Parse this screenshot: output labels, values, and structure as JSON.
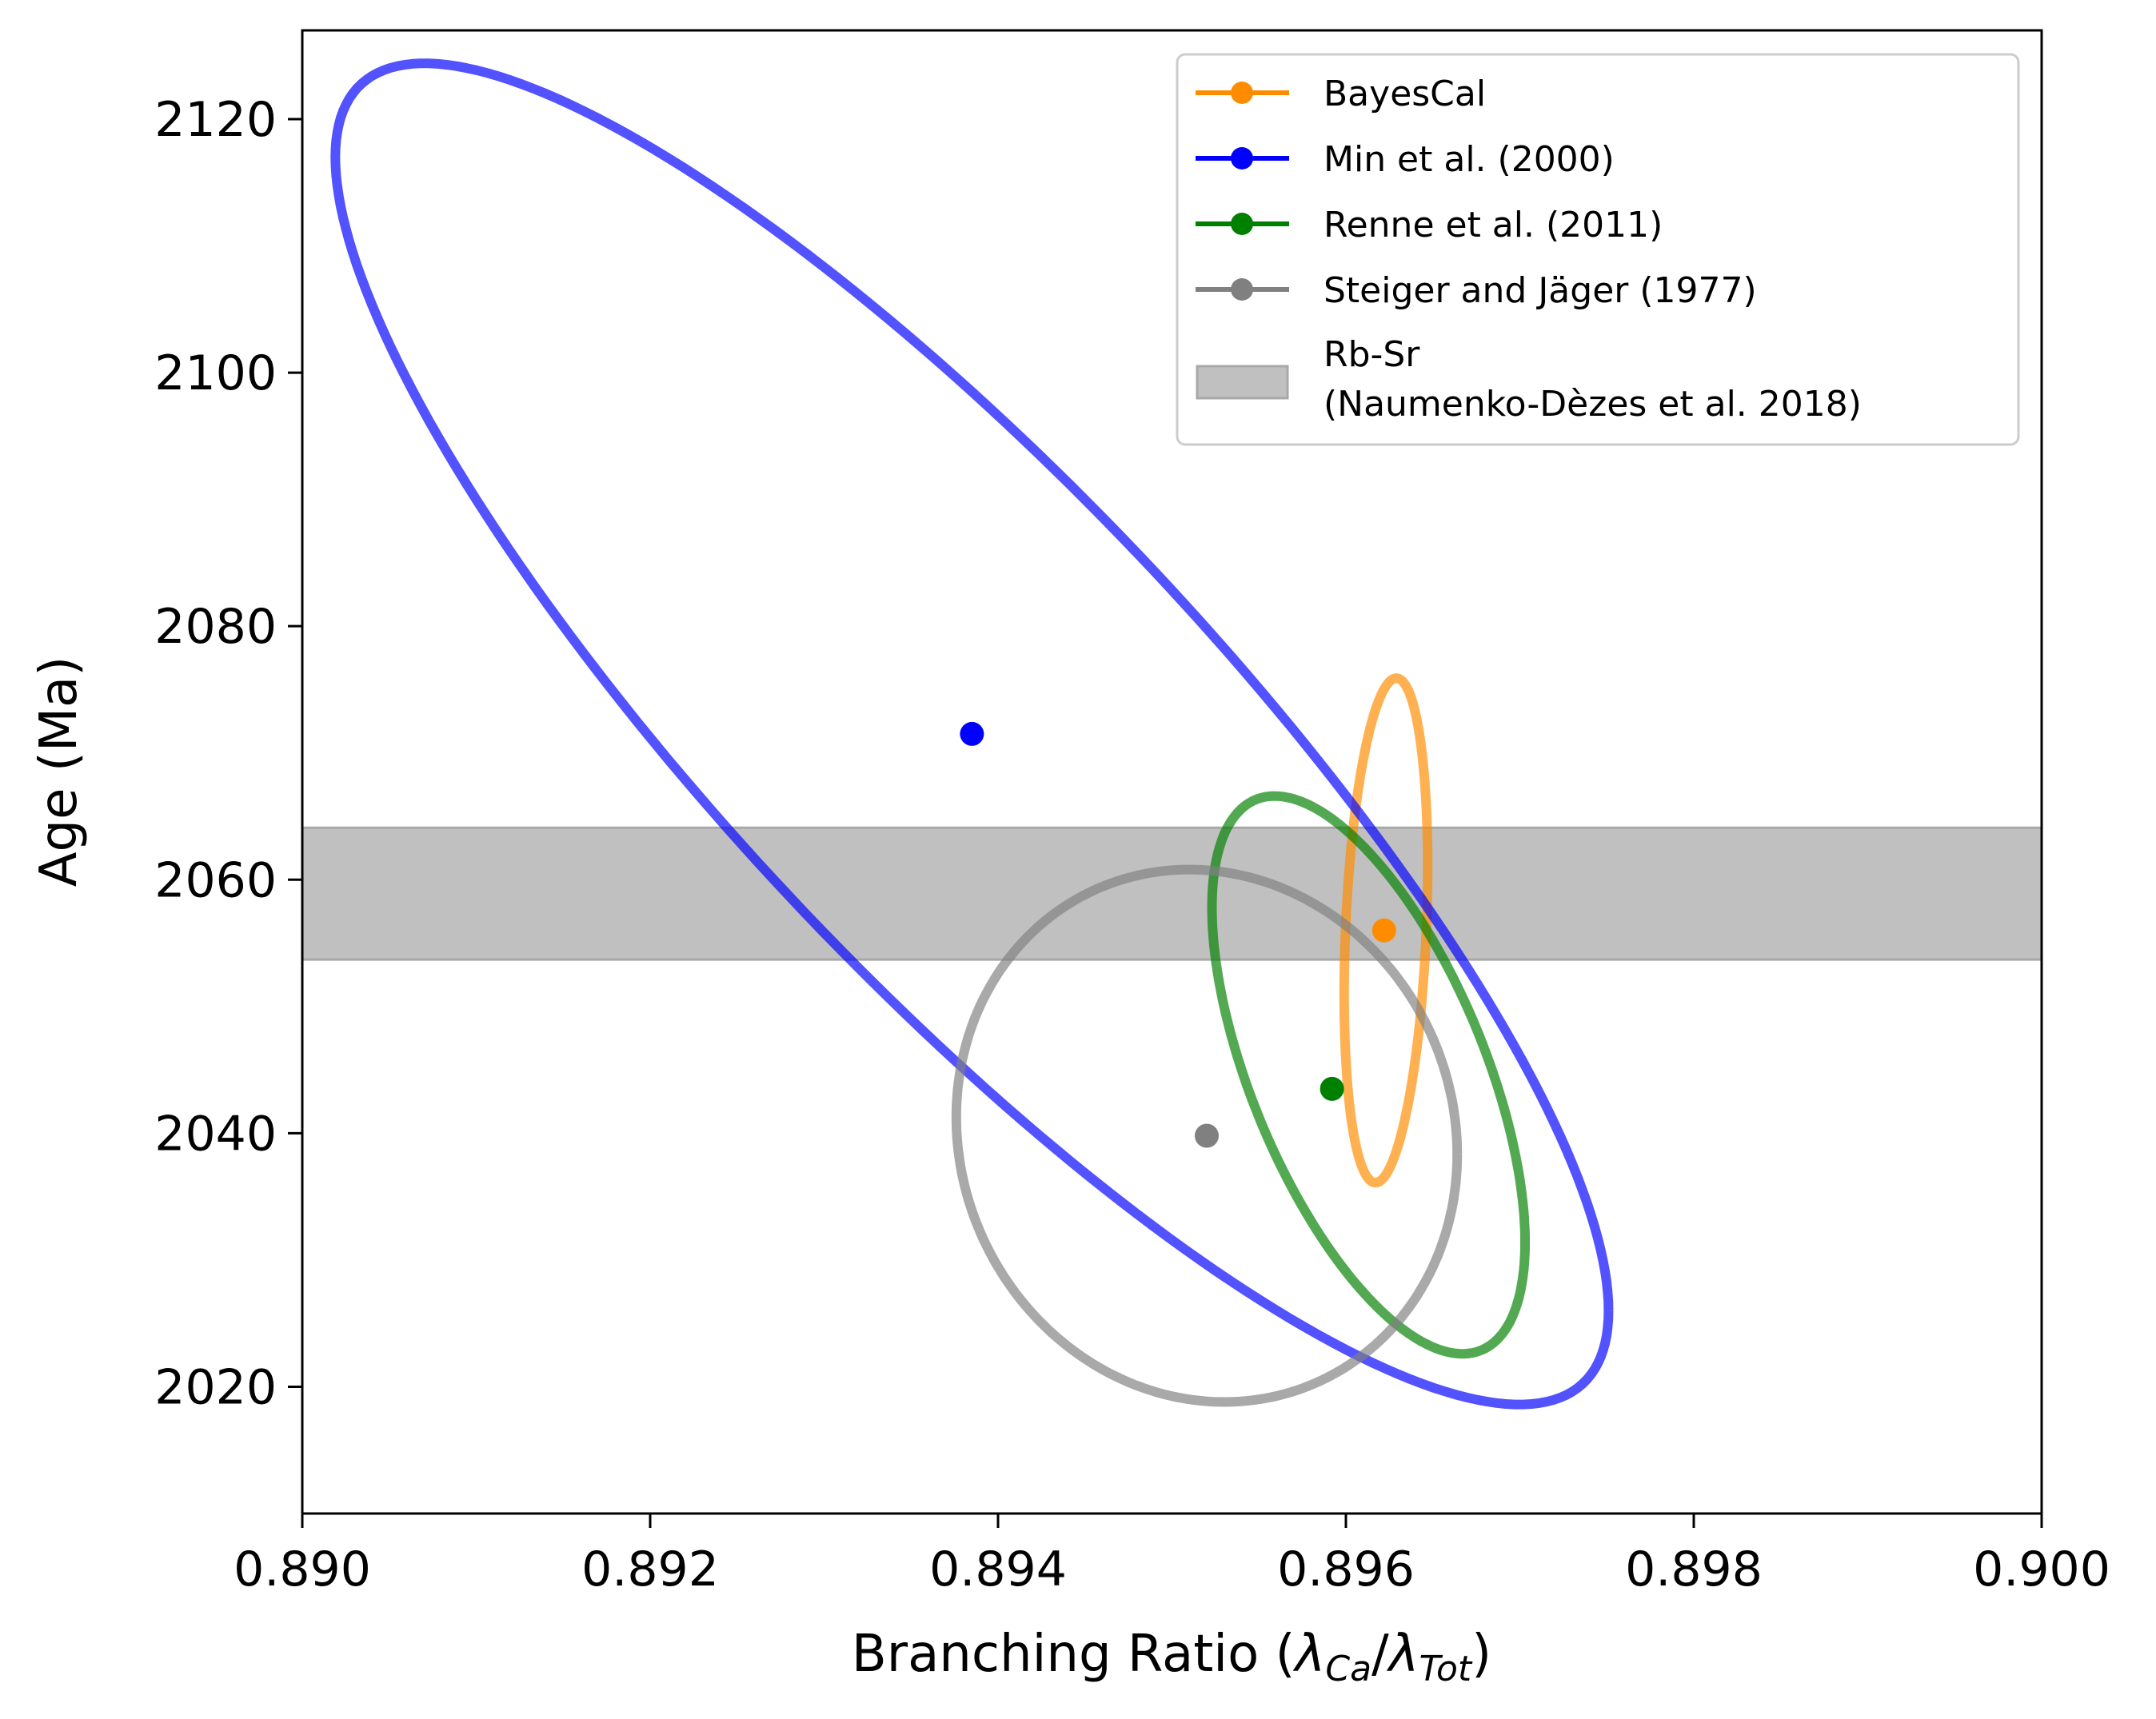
{
  "chart_data": {
    "type": "scatter",
    "title": "",
    "xlabel_prefix": "Branching Ratio (",
    "xlabel_num": "λ",
    "xlabel_num_sub": "Ca",
    "xlabel_slash": "/",
    "xlabel_den": "λ",
    "xlabel_den_sub": "Tot",
    "xlabel_suffix": ")",
    "ylabel": "Age (Ma)",
    "xlim": [
      0.89,
      0.9
    ],
    "ylim": [
      2010,
      2127
    ],
    "xticks": [
      0.89,
      0.892,
      0.894,
      0.896,
      0.898,
      0.9
    ],
    "xtick_labels": [
      "0.890",
      "0.892",
      "0.894",
      "0.896",
      "0.898",
      "0.900"
    ],
    "yticks": [
      2020,
      2040,
      2060,
      2080,
      2100,
      2120
    ],
    "ytick_labels": [
      "2020",
      "2040",
      "2060",
      "2080",
      "2100",
      "2120"
    ],
    "grid": false,
    "legend_position": "top-right",
    "series": [
      {
        "name": "BayesCal",
        "color": "#ff8c00",
        "point": {
          "x": 0.89622,
          "y": 2056.0
        },
        "ellipse": {
          "cx": 0.89623,
          "cy": 2056.0,
          "a_x": 0.00024,
          "a_y": 19.9,
          "rho": 0.25
        }
      },
      {
        "name": "Min et al. (2000)",
        "color": "#0000ff",
        "point": {
          "x": 0.89385,
          "y": 2071.5
        },
        "ellipse": {
          "cx": 0.89385,
          "cy": 2071.5,
          "a_x": 0.00366,
          "a_y": 52.9,
          "rho": -0.86
        }
      },
      {
        "name": "Renne et al. (2011)",
        "color": "#008000",
        "point": {
          "x": 0.89592,
          "y": 2043.5
        },
        "ellipse": {
          "cx": 0.89613,
          "cy": 2044.6,
          "a_x": 0.0009,
          "a_y": 22.0,
          "rho": -0.6
        }
      },
      {
        "name": "Steiger and Jäger (1977)",
        "color": "#808080",
        "point": {
          "x": 0.8952,
          "y": 2039.8
        },
        "ellipse": {
          "cx": 0.8952,
          "cy": 2039.8,
          "a_x": 0.00144,
          "a_y": 21.0,
          "rho": -0.07
        }
      }
    ],
    "band": {
      "name_line1": "Rb-Sr",
      "name_line2": "(Naumenko-Dèzes et al. 2018)",
      "y_low": 2053.7,
      "y_high": 2064.1,
      "color": "#c0c0c0",
      "edge_color": "#a8a8a8"
    }
  }
}
